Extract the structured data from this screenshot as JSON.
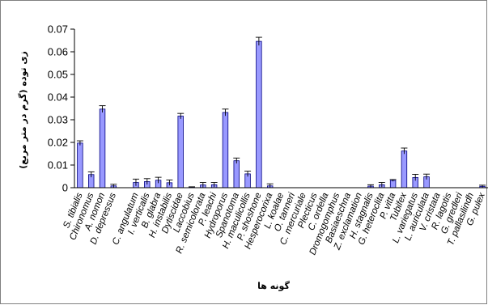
{
  "chart_data": {
    "type": "bar",
    "ylabel": "زی توده (گرم در متر مربع)",
    "xlabel": "گونه ها",
    "ylim": [
      0,
      0.07
    ],
    "yticks": [
      "0",
      "0.01",
      "0.02",
      "0.03",
      "0.04",
      "0.05",
      "0.06",
      "0.07"
    ],
    "bar_color": "#9999ff",
    "bar_edge": "#000080",
    "grid": false,
    "categories": [
      "S. tibialis",
      "Chironomus",
      "A. nomon",
      "D. depressus",
      "",
      "C. angulatum",
      "I. verticalis",
      "B. glabra",
      "H. instabilis",
      "Dytiscidae",
      "Laccobius",
      "R. semicolorata",
      "P. leachi",
      "Hydroporus",
      "Spanotoma",
      "H. maculicollis",
      "P. shoshone",
      "Hesperocorixa",
      "L. koalae",
      "O. tanneri",
      "C. mercuriale",
      "Plecticus",
      "C. ordella",
      "Dromogomphus",
      "Basiaeschna",
      "Z. exclamation",
      "H. stagnalis",
      "G. heteroclita",
      "P. vitta",
      "Tubifex",
      "L. variegatus",
      "L. auriculata",
      "V. cristata",
      "R. lagotis",
      "G. gredleri",
      "T. pallasilindh",
      "G. pulex"
    ],
    "values": [
      0.0197,
      0.0058,
      0.0347,
      0.0008,
      0,
      0.0023,
      0.0027,
      0.0033,
      0.0022,
      0.0316,
      0.0002,
      0.0012,
      0.0013,
      0.0332,
      0.0119,
      0.0061,
      0.0646,
      0.0008,
      0,
      0,
      0,
      0,
      0,
      0,
      0,
      0,
      0.0007,
      0.0013,
      0.0032,
      0.0162,
      0.0045,
      0.0048,
      0,
      0,
      0,
      0,
      0.0006
    ],
    "errors": [
      0.001,
      0.0012,
      0.0015,
      0.0007,
      0,
      0.0015,
      0.0013,
      0.0013,
      0.0012,
      0.0012,
      0.0002,
      0.0011,
      0.001,
      0.0015,
      0.0012,
      0.0012,
      0.0018,
      0.0009,
      0,
      0,
      0,
      0,
      0,
      0,
      0,
      0,
      0.0006,
      0.001,
      0.0004,
      0.0013,
      0.0014,
      0.0012,
      0,
      0,
      0,
      0,
      0.0005
    ]
  }
}
